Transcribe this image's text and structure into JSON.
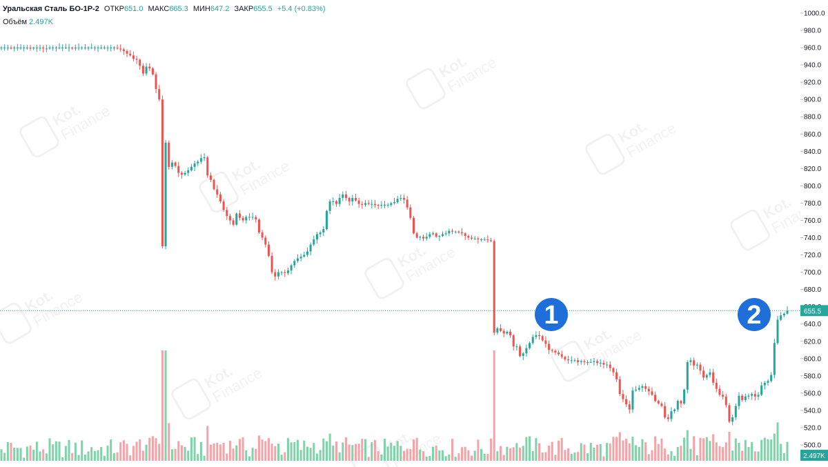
{
  "header": {
    "symbol": "Уральская Сталь БО-1Р-2",
    "open_label": "ОТКР",
    "open_value": "651.0",
    "high_label": "МАКС",
    "high_value": "665.3",
    "low_label": "МИН",
    "low_value": "647.2",
    "close_label": "ЗАКР",
    "close_value": "655.5",
    "change": "+5.4 (+0.83%)",
    "volume_label": "Объём",
    "volume_value": "2.497K"
  },
  "price_axis": {
    "ticks": [
      "1000.0",
      "980.0",
      "960.0",
      "940.0",
      "920.0",
      "900.0",
      "880.0",
      "860.0",
      "840.0",
      "820.0",
      "800.0",
      "780.0",
      "760.0",
      "740.0",
      "720.0",
      "700.0",
      "680.0",
      "660.0",
      "640.0",
      "620.0",
      "600.0",
      "580.0",
      "560.0",
      "540.0",
      "520.0",
      "500.0"
    ],
    "last_price": "655.5",
    "last_volume": "2.497K"
  },
  "annotations": [
    {
      "label": "1",
      "price": 650
    },
    {
      "label": "2",
      "price": 650
    }
  ],
  "watermark": {
    "line1": "Kot.",
    "line2": "Finance"
  },
  "colors": {
    "up": "#26a69a",
    "down": "#ef5350",
    "up_vol": "#7fd3a8",
    "down_vol": "#f5a3a8",
    "marker": "#1e6fd9"
  },
  "chart_data": {
    "type": "candlestick",
    "title": "Уральская Сталь БО-1Р-2",
    "ylim": [
      490,
      1005
    ],
    "y_ticks": [
      1000,
      980,
      960,
      940,
      920,
      900,
      880,
      860,
      840,
      820,
      800,
      780,
      760,
      740,
      720,
      700,
      680,
      660,
      640,
      620,
      600,
      580,
      560,
      540,
      520,
      500
    ],
    "last_price": 655.5,
    "close_series": [
      960,
      960,
      960,
      959,
      960,
      960,
      960,
      960,
      960,
      959,
      960,
      960,
      960,
      959,
      959,
      960,
      960,
      960,
      960,
      960,
      960,
      960,
      959,
      960,
      960,
      960,
      960,
      960,
      960,
      960,
      960,
      960,
      960,
      960,
      960,
      960,
      959,
      958,
      956,
      953,
      951,
      947,
      946,
      939,
      930,
      938,
      936,
      929,
      912,
      900,
      730,
      850,
      822,
      827,
      823,
      815,
      813,
      815,
      818,
      822,
      826,
      828,
      832,
      833,
      812,
      807,
      796,
      790,
      782,
      772,
      765,
      760,
      755,
      768,
      763,
      760,
      764,
      764,
      764,
      761,
      746,
      740,
      732,
      719,
      700,
      695,
      700,
      700,
      699,
      702,
      708,
      713,
      716,
      718,
      720,
      724,
      732,
      738,
      744,
      746,
      750,
      771,
      782,
      782,
      779,
      786,
      790,
      786,
      782,
      786,
      783,
      779,
      778,
      780,
      779,
      779,
      778,
      777,
      778,
      778,
      778,
      780,
      781,
      785,
      786,
      784,
      775,
      763,
      745,
      740,
      741,
      739,
      741,
      744,
      745,
      741,
      742,
      744,
      745,
      748,
      747,
      747,
      746,
      745,
      742,
      740,
      739,
      739,
      738,
      738,
      738,
      737,
      736,
      630,
      635,
      632,
      629,
      631,
      627,
      614,
      614,
      603,
      606,
      612,
      618,
      625,
      627,
      626,
      621,
      617,
      610,
      609,
      607,
      605,
      602,
      599,
      598,
      598,
      598,
      596,
      597,
      596,
      596,
      596,
      597,
      595,
      595,
      593,
      593,
      589,
      584,
      576,
      559,
      553,
      547,
      541,
      563,
      564,
      566,
      568,
      565,
      562,
      558,
      551,
      548,
      545,
      532,
      530,
      539,
      541,
      551,
      548,
      564,
      596,
      598,
      592,
      593,
      586,
      578,
      581,
      584,
      572,
      565,
      558,
      556,
      546,
      527,
      532,
      545,
      557,
      552,
      556,
      557,
      559,
      556,
      558,
      569,
      572,
      574,
      581,
      618,
      645,
      650,
      652,
      655.5
    ],
    "volume_scale_max": "2.497K"
  }
}
